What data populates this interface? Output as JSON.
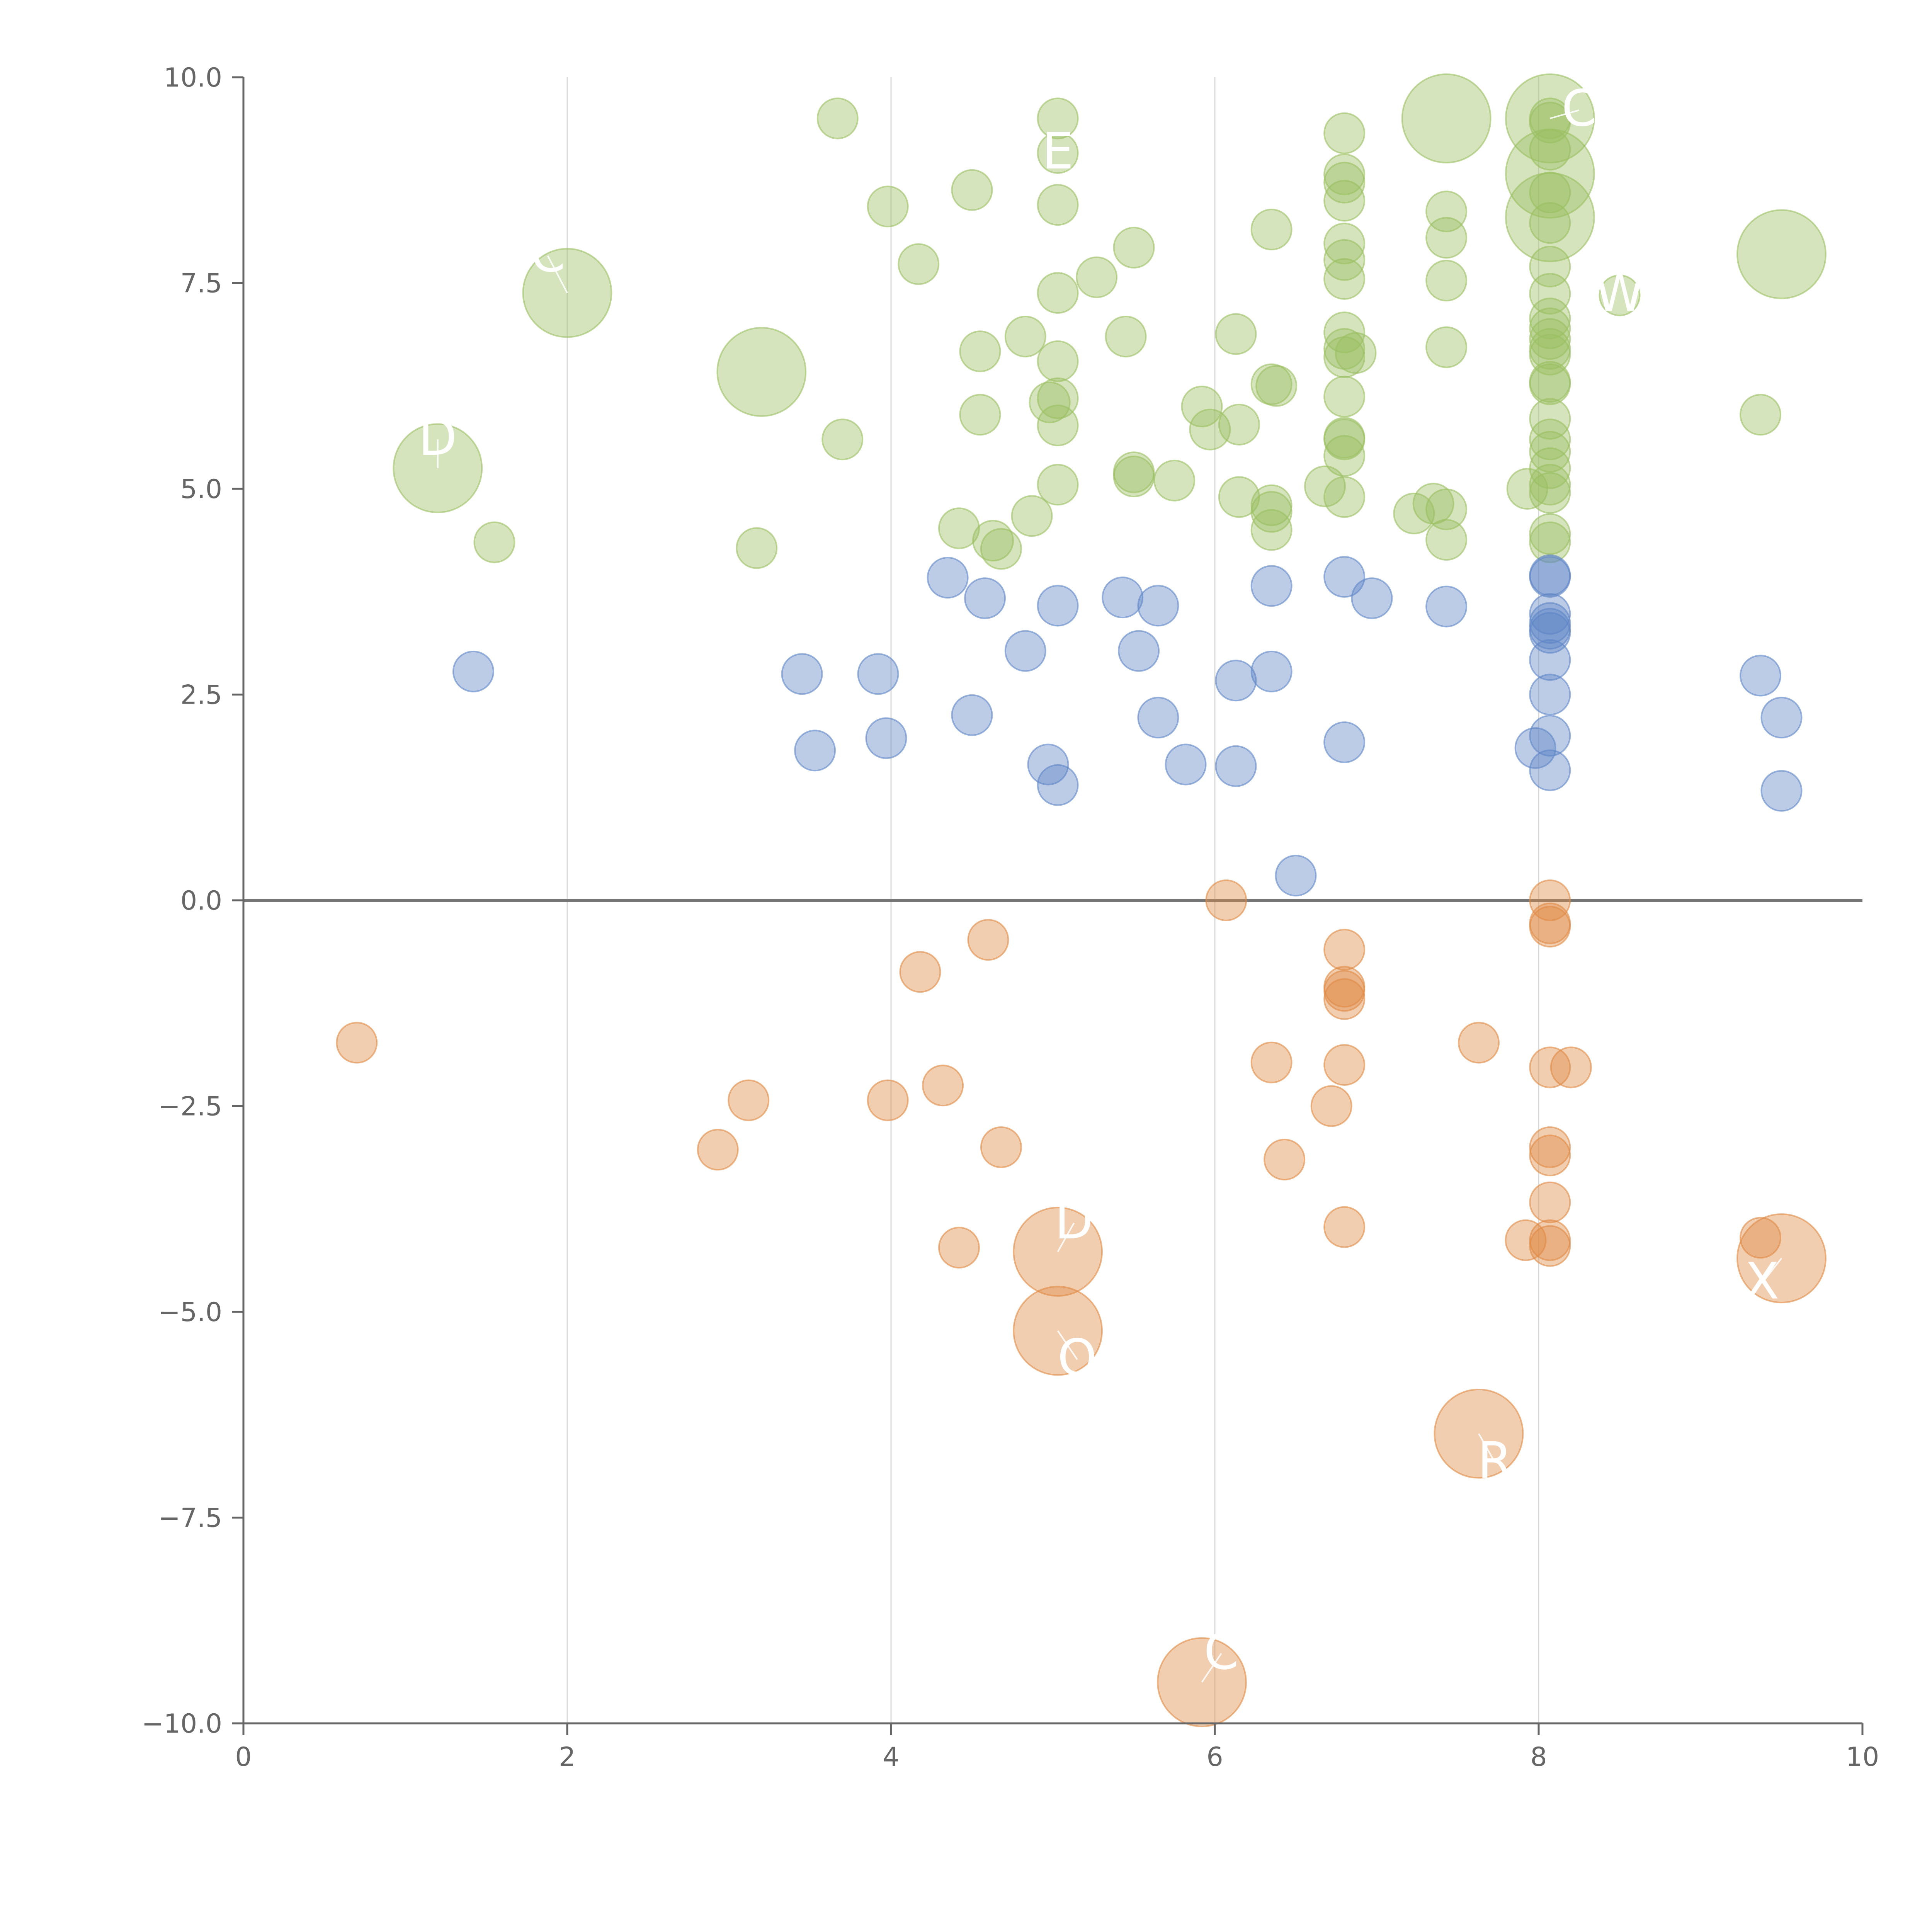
{
  "chart_data": {
    "type": "scatter",
    "title": "",
    "xlabel": "",
    "ylabel": "",
    "xlim": [
      0,
      10
    ],
    "ylim": [
      -10,
      10
    ],
    "x_ticks": [
      0,
      2,
      4,
      6,
      8,
      10
    ],
    "y_ticks": [
      10,
      7.5,
      5,
      2.5,
      0,
      -2.5,
      -5,
      -7.5,
      -10
    ],
    "x_tick_labels": [
      "0",
      "2",
      "4",
      "6",
      "8",
      "10"
    ],
    "y_tick_labels": [
      "10.0",
      "7.5",
      "5.0",
      "2.5",
      "0.0",
      "−2.5",
      "−5.0",
      "−7.5",
      "−10.0"
    ],
    "grid": "vertical",
    "zero_line": true,
    "colors": {
      "green": "#9bbf62",
      "blue": "#5f86c6",
      "orange": "#e08a45"
    },
    "series": [
      {
        "name": "green",
        "color": "#9bbf62",
        "points": [
          [
            3.67,
            9.5,
            1
          ],
          [
            5.03,
            9.5,
            1
          ],
          [
            5.03,
            9.08,
            1
          ],
          [
            3.98,
            8.43,
            1
          ],
          [
            4.5,
            8.63,
            1
          ],
          [
            5.03,
            8.45,
            1
          ],
          [
            4.17,
            7.73,
            1
          ],
          [
            5.03,
            7.38,
            1
          ],
          [
            5.27,
            7.57,
            1
          ],
          [
            5.5,
            7.93,
            1
          ],
          [
            4.55,
            6.67,
            1
          ],
          [
            4.83,
            6.85,
            1
          ],
          [
            5.03,
            6.55,
            1
          ],
          [
            5.45,
            6.85,
            1
          ],
          [
            4.55,
            5.9,
            1
          ],
          [
            4.98,
            6.05,
            1
          ],
          [
            5.03,
            6.1,
            1
          ],
          [
            5.03,
            5.77,
            1
          ],
          [
            3.7,
            5.6,
            1
          ],
          [
            5.03,
            5.05,
            1
          ],
          [
            4.42,
            4.52,
            1
          ],
          [
            4.63,
            4.37,
            1
          ],
          [
            4.68,
            4.27,
            1
          ],
          [
            4.87,
            4.67,
            1
          ],
          [
            5.5,
            5.2,
            1
          ],
          [
            5.5,
            5.15,
            1
          ],
          [
            5.75,
            5.1,
            1
          ],
          [
            5.92,
            6.0,
            1
          ],
          [
            5.97,
            5.72,
            1
          ],
          [
            6.15,
            5.78,
            1
          ],
          [
            6.13,
            6.88,
            1
          ],
          [
            6.35,
            6.27,
            1
          ],
          [
            6.38,
            6.25,
            1
          ],
          [
            6.35,
            8.15,
            1
          ],
          [
            6.15,
            4.9,
            1
          ],
          [
            6.35,
            4.8,
            1
          ],
          [
            6.35,
            4.72,
            1
          ],
          [
            6.35,
            4.5,
            1
          ],
          [
            6.68,
            5.03,
            1
          ],
          [
            6.8,
            4.9,
            1
          ],
          [
            6.8,
            5.4,
            1
          ],
          [
            6.8,
            5.6,
            1
          ],
          [
            6.8,
            5.62,
            1
          ],
          [
            6.8,
            6.12,
            1
          ],
          [
            6.8,
            6.6,
            1
          ],
          [
            6.8,
            6.7,
            1
          ],
          [
            6.8,
            6.9,
            1
          ],
          [
            6.87,
            6.65,
            1
          ],
          [
            6.8,
            7.55,
            1
          ],
          [
            6.8,
            7.78,
            1
          ],
          [
            6.8,
            7.98,
            1
          ],
          [
            6.8,
            8.5,
            1
          ],
          [
            6.8,
            8.72,
            1
          ],
          [
            6.8,
            8.82,
            1
          ],
          [
            6.8,
            9.32,
            1
          ],
          [
            7.43,
            8.37,
            1
          ],
          [
            7.43,
            8.05,
            1
          ],
          [
            7.43,
            7.53,
            1
          ],
          [
            7.43,
            6.72,
            1
          ],
          [
            7.43,
            4.75,
            1
          ],
          [
            7.43,
            4.38,
            1
          ],
          [
            7.35,
            4.82,
            1
          ],
          [
            7.23,
            4.7,
            1
          ],
          [
            7.93,
            5.0,
            1
          ],
          [
            8.07,
            4.95,
            1
          ],
          [
            8.07,
            5.05,
            1
          ],
          [
            8.07,
            5.25,
            1
          ],
          [
            8.07,
            5.45,
            1
          ],
          [
            8.07,
            5.6,
            1
          ],
          [
            8.07,
            5.85,
            1
          ],
          [
            8.07,
            6.27,
            1
          ],
          [
            8.07,
            6.3,
            1
          ],
          [
            8.07,
            6.63,
            1
          ],
          [
            8.07,
            6.7,
            1
          ],
          [
            8.07,
            6.82,
            1
          ],
          [
            8.07,
            6.95,
            1
          ],
          [
            8.07,
            7.07,
            1
          ],
          [
            8.07,
            7.37,
            1
          ],
          [
            8.07,
            7.7,
            1
          ],
          [
            8.07,
            8.23,
            1
          ],
          [
            8.07,
            8.6,
            1
          ],
          [
            8.07,
            9.12,
            1
          ],
          [
            8.07,
            9.45,
            1
          ],
          [
            8.07,
            9.5,
            1
          ],
          [
            8.07,
            4.45,
            1
          ],
          [
            8.07,
            4.35,
            1
          ],
          [
            8.5,
            7.35,
            1
          ],
          [
            9.37,
            5.9,
            1
          ],
          [
            1.55,
            4.35,
            1
          ],
          [
            3.17,
            4.28,
            1
          ],
          [
            1.2,
            5.25,
            2.2
          ],
          [
            2.0,
            7.38,
            2.2
          ],
          [
            3.2,
            6.42,
            2.2
          ],
          [
            7.43,
            9.5,
            2.2
          ],
          [
            8.07,
            9.5,
            2.2
          ],
          [
            8.07,
            8.83,
            2.2
          ],
          [
            8.07,
            8.3,
            2.2
          ],
          [
            9.5,
            7.85,
            2.2
          ]
        ]
      },
      {
        "name": "blue",
        "color": "#5f86c6",
        "points": [
          [
            1.42,
            2.78,
            1
          ],
          [
            3.45,
            2.75,
            1
          ],
          [
            3.53,
            1.82,
            1
          ],
          [
            3.92,
            2.75,
            1
          ],
          [
            3.97,
            1.97,
            1
          ],
          [
            4.35,
            3.92,
            1
          ],
          [
            4.58,
            3.67,
            1
          ],
          [
            4.5,
            2.25,
            1
          ],
          [
            4.83,
            3.03,
            1
          ],
          [
            5.03,
            3.58,
            1
          ],
          [
            4.97,
            1.65,
            1
          ],
          [
            5.03,
            1.4,
            1
          ],
          [
            5.43,
            3.68,
            1
          ],
          [
            5.53,
            3.03,
            1
          ],
          [
            5.65,
            3.58,
            1
          ],
          [
            5.65,
            2.22,
            1
          ],
          [
            5.82,
            1.65,
            1
          ],
          [
            6.13,
            2.67,
            1
          ],
          [
            6.13,
            1.63,
            1
          ],
          [
            6.35,
            3.82,
            1
          ],
          [
            6.35,
            2.78,
            1
          ],
          [
            6.8,
            3.93,
            1
          ],
          [
            6.97,
            3.67,
            1
          ],
          [
            6.8,
            1.92,
            1
          ],
          [
            6.5,
            0.3,
            1
          ],
          [
            7.43,
            3.57,
            1
          ],
          [
            8.07,
            3.95,
            1
          ],
          [
            8.07,
            3.93,
            1
          ],
          [
            8.07,
            3.48,
            1
          ],
          [
            8.07,
            3.37,
            1
          ],
          [
            8.07,
            3.3,
            1
          ],
          [
            8.07,
            3.25,
            1
          ],
          [
            8.07,
            2.92,
            1
          ],
          [
            8.07,
            2.5,
            1
          ],
          [
            8.07,
            2.0,
            1
          ],
          [
            7.98,
            1.85,
            1
          ],
          [
            8.07,
            1.58,
            1
          ],
          [
            9.37,
            2.73,
            1
          ],
          [
            9.5,
            2.22,
            1
          ],
          [
            9.5,
            1.33,
            1
          ]
        ]
      },
      {
        "name": "orange",
        "color": "#e08a45",
        "points": [
          [
            0.7,
            -1.73,
            1
          ],
          [
            2.93,
            -3.03,
            1
          ],
          [
            3.12,
            -2.43,
            1
          ],
          [
            3.98,
            -2.43,
            1
          ],
          [
            4.18,
            -0.87,
            1
          ],
          [
            4.32,
            -2.25,
            1
          ],
          [
            4.6,
            -0.48,
            1
          ],
          [
            4.68,
            -3.0,
            1
          ],
          [
            4.42,
            -4.22,
            1
          ],
          [
            6.07,
            0.0,
            1
          ],
          [
            6.35,
            -1.97,
            1
          ],
          [
            6.43,
            -3.15,
            1
          ],
          [
            6.72,
            -2.5,
            1
          ],
          [
            6.8,
            -0.6,
            1
          ],
          [
            6.8,
            -1.05,
            1
          ],
          [
            6.8,
            -1.1,
            1
          ],
          [
            6.8,
            -1.2,
            1
          ],
          [
            6.8,
            -2.0,
            1
          ],
          [
            6.8,
            -3.97,
            1
          ],
          [
            7.63,
            -1.73,
            1
          ],
          [
            8.07,
            0.0,
            1
          ],
          [
            8.07,
            -0.28,
            1
          ],
          [
            8.07,
            -0.32,
            1
          ],
          [
            8.07,
            -2.03,
            1
          ],
          [
            8.2,
            -2.03,
            1
          ],
          [
            8.07,
            -3.0,
            1
          ],
          [
            8.07,
            -3.1,
            1
          ],
          [
            8.07,
            -3.67,
            1
          ],
          [
            7.92,
            -4.13,
            1
          ],
          [
            8.07,
            -4.13,
            1
          ],
          [
            8.07,
            -4.2,
            1
          ],
          [
            9.37,
            -4.1,
            1
          ],
          [
            5.03,
            -4.27,
            2.2
          ],
          [
            5.03,
            -5.23,
            2.2
          ],
          [
            5.92,
            -9.5,
            2.2
          ],
          [
            7.63,
            -6.48,
            2.2
          ],
          [
            9.5,
            -4.35,
            2.2
          ]
        ]
      }
    ],
    "labels": [
      {
        "text": "D",
        "x": 1.2,
        "y": 5.25,
        "dx": 0.0,
        "dy": 0.35
      },
      {
        "text": "C",
        "x": 2.0,
        "y": 7.38,
        "dx": -0.12,
        "dy": 0.45
      },
      {
        "text": "E",
        "x": 5.03,
        "y": 9.08,
        "dx": 0.0,
        "dy": 0.0
      },
      {
        "text": "C",
        "x": 8.07,
        "y": 9.5,
        "dx": 0.18,
        "dy": 0.1
      },
      {
        "text": "W",
        "x": 8.5,
        "y": 7.35,
        "dx": 0.0,
        "dy": 0.0
      },
      {
        "text": "D",
        "x": 5.03,
        "y": -4.27,
        "dx": 0.1,
        "dy": 0.35
      },
      {
        "text": "O",
        "x": 5.03,
        "y": -5.23,
        "dx": 0.12,
        "dy": -0.35
      },
      {
        "text": "C",
        "x": 5.92,
        "y": -9.5,
        "dx": 0.12,
        "dy": 0.35
      },
      {
        "text": "R",
        "x": 7.63,
        "y": -6.48,
        "dx": 0.1,
        "dy": -0.35
      },
      {
        "text": "X",
        "x": 9.5,
        "y": -4.35,
        "dx": -0.12,
        "dy": -0.3
      }
    ]
  }
}
